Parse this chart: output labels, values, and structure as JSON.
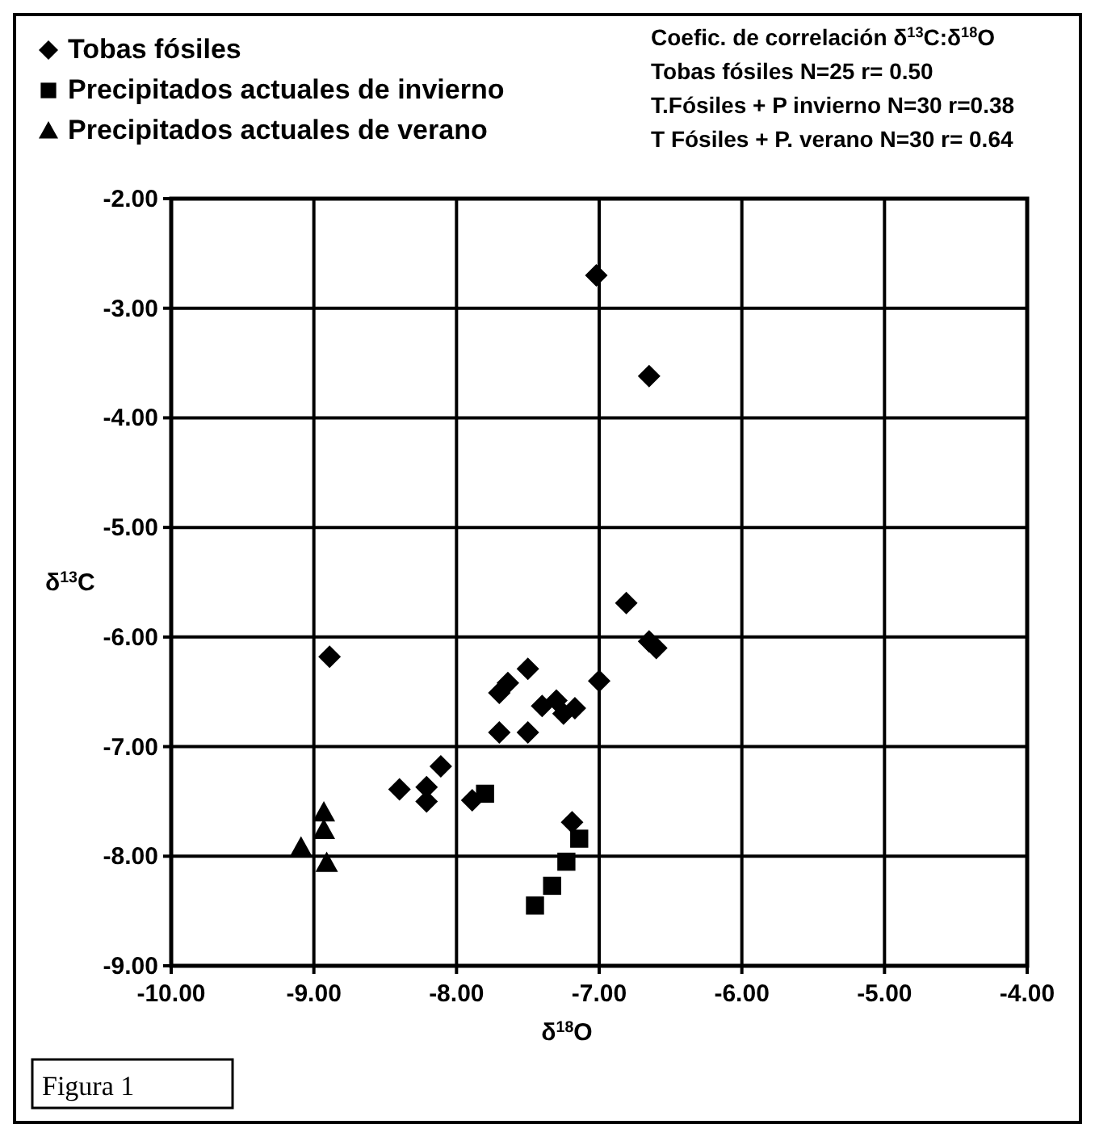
{
  "chart_data": {
    "type": "scatter",
    "xlabel": "δ$^{18}$O",
    "ylabel": "δ$^{13}$C",
    "xlim": [
      -10,
      -4
    ],
    "xticks": [
      {
        "value": -10,
        "label": "-10.00"
      },
      {
        "value": -9,
        "label": "-9.00"
      },
      {
        "value": -8,
        "label": "-8.00"
      },
      {
        "value": -7,
        "label": "-7.00"
      },
      {
        "value": -6,
        "label": "-6.00"
      },
      {
        "value": -5,
        "label": "-5.00"
      },
      {
        "value": -4,
        "label": "-4.00"
      }
    ],
    "ylim": [
      -9,
      -2
    ],
    "yticks": [
      {
        "value": -9,
        "label": "-9.00"
      },
      {
        "value": -8,
        "label": "-8.00"
      },
      {
        "value": -7,
        "label": "-7.00"
      },
      {
        "value": -6,
        "label": "-6.00"
      },
      {
        "value": -5,
        "label": "-5.00"
      },
      {
        "value": -4,
        "label": "-4.00"
      },
      {
        "value": -3,
        "label": "-3.00"
      },
      {
        "value": -2,
        "label": "-2.00"
      }
    ],
    "grid": true,
    "legend": "top left",
    "series": [
      {
        "name": "Tobas fósiles",
        "color": "#000000",
        "marker": "diamond",
        "x": [
          -7.02,
          -6.65,
          -8.89,
          -6.81,
          -6.65,
          -6.6,
          -7.0,
          -7.5,
          -7.64,
          -7.7,
          -7.4,
          -7.3,
          -7.17,
          -7.25,
          -7.7,
          -7.5,
          -8.11,
          -8.4,
          -8.21,
          -8.21,
          -7.89,
          -7.19
        ],
        "values": [
          -2.7,
          -3.62,
          -6.18,
          -5.69,
          -6.04,
          -6.1,
          -6.4,
          -6.29,
          -6.42,
          -6.51,
          -6.63,
          -6.58,
          -6.65,
          -6.7,
          -6.87,
          -6.87,
          -7.18,
          -7.39,
          -7.37,
          -7.5,
          -7.49,
          -7.69
        ]
      },
      {
        "name": "Precipitados actuales de invierno",
        "color": "#000000",
        "marker": "square",
        "x": [
          -7.8,
          -7.14,
          -7.23,
          -7.33,
          -7.45
        ],
        "values": [
          -7.43,
          -7.84,
          -8.05,
          -8.27,
          -8.45
        ]
      },
      {
        "name": "Precipitados actuales de verano",
        "color": "#000000",
        "marker": "triangle",
        "x": [
          -8.93,
          -8.93,
          -9.09,
          -8.91
        ],
        "values": [
          -7.6,
          -7.76,
          -7.92,
          -8.06
        ]
      }
    ],
    "annotations": [
      "Coefic. de correlación δ$^{13}$C:δ$^{18}$O",
      "Tobas fósiles N=25 r= 0.50",
      "T.Fósiles + P invierno N=30 r=0.38",
      "T Fósiles + P. verano N=30 r= 0.64",
      "Figura 1"
    ]
  }
}
